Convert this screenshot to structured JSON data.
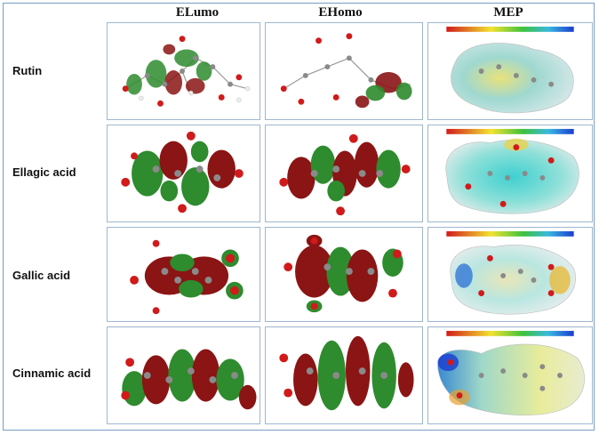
{
  "headers": {
    "elumo": "ELumo",
    "ehomo": "EHomo",
    "mep": "MEP"
  },
  "rows": [
    {
      "label": "Rutin"
    },
    {
      "label": "Ellagic acid"
    },
    {
      "label": "Gallic acid"
    },
    {
      "label": "Cinnamic acid"
    }
  ],
  "colors": {
    "orbital_positive": "#2e8b2e",
    "orbital_negative": "#8b1414",
    "atom_oxygen": "#d11a1a",
    "atom_carbon": "#8a8a8a",
    "atom_hydrogen": "#f2f2f2",
    "panel_border": "#9fb7cf",
    "frame_border": "#7a9cc6"
  }
}
